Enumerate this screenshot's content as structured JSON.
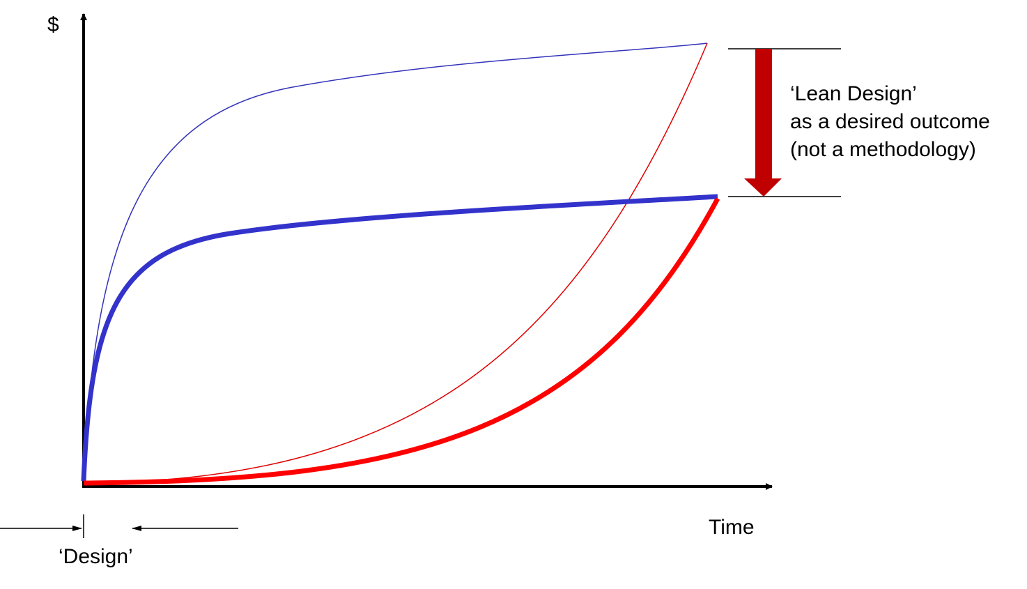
{
  "axes": {
    "y_label": "$",
    "x_label": "Time"
  },
  "annotation": {
    "lines": [
      "‘Lean Design’",
      "as a desired outcome",
      "(not a methodology)"
    ]
  },
  "phase_label": "‘Design’"
}
